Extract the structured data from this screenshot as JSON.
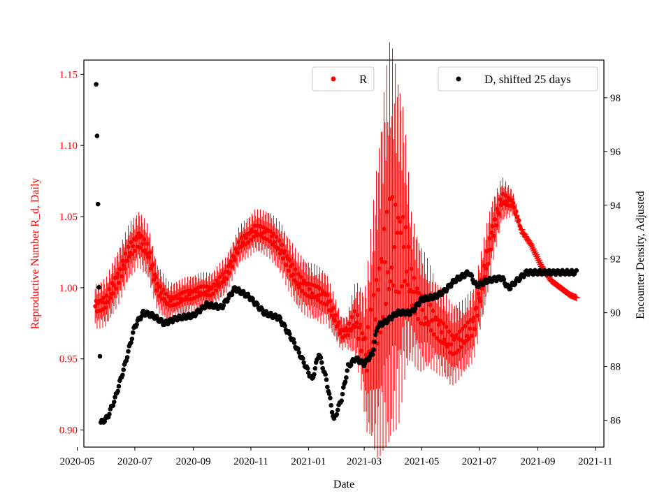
{
  "chart_data": {
    "type": "scatter",
    "xlabel": "Date",
    "ylabel_left": "Reproductive Number R_d, Daily",
    "ylabel_right": "Encounter Density, Adjusted",
    "xlim": [
      "2020-05-08",
      "2021-11-10"
    ],
    "ylim_left": [
      0.888,
      1.16
    ],
    "ylim_right": [
      85.0,
      99.4
    ],
    "x_ticks": [
      "2020-05",
      "2020-07",
      "2020-09",
      "2020-11",
      "2021-01",
      "2021-03",
      "2021-05",
      "2021-07",
      "2021-09",
      "2021-11"
    ],
    "y_left_ticks": [
      "0.90",
      "0.95",
      "1.00",
      "1.05",
      "1.10",
      "1.15"
    ],
    "y_right_ticks": [
      "86",
      "88",
      "90",
      "92",
      "94",
      "96",
      "98"
    ],
    "legend_r": {
      "label": "R",
      "placement": "top-center",
      "color": "#ff0000"
    },
    "legend_d": {
      "label": "D, shifted 25 days",
      "placement": "top-right",
      "color": "#000000"
    },
    "colors": {
      "r_series": "#ff0000",
      "d_series": "#000000",
      "axis": "#000000"
    },
    "series": [
      {
        "name": "R",
        "axis": "left",
        "marker": "dot_then_plus_after_2021-08-15",
        "knots": [
          [
            "2020-05-20",
            0.987
          ],
          [
            "2020-06-01",
            0.99
          ],
          [
            "2020-06-15",
            1.01
          ],
          [
            "2020-06-25",
            1.025
          ],
          [
            "2020-07-05",
            1.035
          ],
          [
            "2020-07-15",
            1.025
          ],
          [
            "2020-07-25",
            1.0
          ],
          [
            "2020-08-05",
            0.99
          ],
          [
            "2020-08-20",
            0.993
          ],
          [
            "2020-09-05",
            0.997
          ],
          [
            "2020-09-20",
            0.998
          ],
          [
            "2020-10-05",
            1.008
          ],
          [
            "2020-10-20",
            1.03
          ],
          [
            "2020-11-05",
            1.04
          ],
          [
            "2020-11-20",
            1.038
          ],
          [
            "2020-12-05",
            1.025
          ],
          [
            "2020-12-20",
            1.005
          ],
          [
            "2021-01-05",
            0.997
          ],
          [
            "2021-01-20",
            0.993
          ],
          [
            "2021-01-28",
            0.98
          ],
          [
            "2021-02-05",
            0.968
          ],
          [
            "2021-02-12",
            0.97
          ],
          [
            "2021-02-20",
            0.978
          ],
          [
            "2021-02-25",
            0.968
          ],
          [
            "2021-03-03",
            0.952
          ],
          [
            "2021-03-12",
            0.975
          ],
          [
            "2021-03-22",
            1.015
          ],
          [
            "2021-04-01",
            1.03
          ],
          [
            "2021-04-12",
            1.028
          ],
          [
            "2021-04-20",
            1.0
          ],
          [
            "2021-05-01",
            0.985
          ],
          [
            "2021-05-15",
            0.975
          ],
          [
            "2021-06-01",
            0.96
          ],
          [
            "2021-06-15",
            0.965
          ],
          [
            "2021-06-25",
            0.975
          ],
          [
            "2021-07-05",
            1.005
          ],
          [
            "2021-07-15",
            1.04
          ],
          [
            "2021-07-25",
            1.062
          ],
          [
            "2021-08-05",
            1.06
          ],
          [
            "2021-08-15",
            1.04
          ],
          [
            "2021-08-25",
            1.03
          ],
          [
            "2021-09-05",
            1.015
          ],
          [
            "2021-09-15",
            1.005
          ],
          [
            "2021-09-25",
            1.0
          ],
          [
            "2021-10-05",
            0.995
          ],
          [
            "2021-10-12",
            0.993
          ]
        ],
        "error_bars": [
          [
            "2020-05-20",
            0.012
          ],
          [
            "2020-06-15",
            0.015
          ],
          [
            "2020-07-10",
            0.015
          ],
          [
            "2020-08-10",
            0.01
          ],
          [
            "2020-09-15",
            0.01
          ],
          [
            "2020-10-15",
            0.01
          ],
          [
            "2020-11-15",
            0.012
          ],
          [
            "2020-12-15",
            0.015
          ],
          [
            "2021-01-15",
            0.015
          ],
          [
            "2021-02-10",
            0.008
          ],
          [
            "2021-02-28",
            0.03
          ],
          [
            "2021-03-15",
            0.08
          ],
          [
            "2021-03-28",
            0.11
          ],
          [
            "2021-04-08",
            0.09
          ],
          [
            "2021-04-20",
            0.04
          ],
          [
            "2021-05-15",
            0.025
          ],
          [
            "2021-06-15",
            0.02
          ],
          [
            "2021-07-10",
            0.02
          ],
          [
            "2021-07-25",
            0.012
          ],
          [
            "2021-08-10",
            0.005
          ],
          [
            "2021-08-20",
            0.0
          ],
          [
            "2021-10-12",
            0.0
          ]
        ]
      },
      {
        "name": "D, shifted 25 days",
        "axis": "right",
        "marker": "dot",
        "knots": [
          [
            "2020-05-21",
            98.5
          ],
          [
            "2020-05-22",
            96.5
          ],
          [
            "2020-05-23",
            94.0
          ],
          [
            "2020-05-24",
            91.0
          ],
          [
            "2020-05-26",
            85.9
          ],
          [
            "2020-06-02",
            86.1
          ],
          [
            "2020-06-10",
            86.8
          ],
          [
            "2020-06-20",
            88.0
          ],
          [
            "2020-07-01",
            89.5
          ],
          [
            "2020-07-10",
            90.0
          ],
          [
            "2020-07-20",
            89.9
          ],
          [
            "2020-08-01",
            89.6
          ],
          [
            "2020-08-15",
            89.8
          ],
          [
            "2020-09-01",
            89.9
          ],
          [
            "2020-09-15",
            90.3
          ],
          [
            "2020-10-01",
            90.2
          ],
          [
            "2020-10-15",
            90.9
          ],
          [
            "2020-10-30",
            90.6
          ],
          [
            "2020-11-15",
            90.0
          ],
          [
            "2020-12-01",
            89.8
          ],
          [
            "2020-12-15",
            89.0
          ],
          [
            "2020-12-25",
            88.3
          ],
          [
            "2021-01-05",
            87.5
          ],
          [
            "2021-01-12",
            88.5
          ],
          [
            "2021-01-20",
            87.5
          ],
          [
            "2021-01-28",
            86.0
          ],
          [
            "2021-02-05",
            86.8
          ],
          [
            "2021-02-12",
            88.0
          ],
          [
            "2021-02-20",
            88.3
          ],
          [
            "2021-03-01",
            88.1
          ],
          [
            "2021-03-10",
            88.5
          ],
          [
            "2021-03-15",
            89.5
          ],
          [
            "2021-03-25",
            89.7
          ],
          [
            "2021-04-05",
            90.0
          ],
          [
            "2021-04-20",
            90.0
          ],
          [
            "2021-05-01",
            90.5
          ],
          [
            "2021-05-15",
            90.6
          ],
          [
            "2021-05-25",
            90.8
          ],
          [
            "2021-06-05",
            91.2
          ],
          [
            "2021-06-20",
            91.5
          ],
          [
            "2021-06-28",
            91.0
          ],
          [
            "2021-07-10",
            91.2
          ],
          [
            "2021-07-25",
            91.3
          ],
          [
            "2021-08-01",
            90.9
          ],
          [
            "2021-08-10",
            91.2
          ],
          [
            "2021-08-20",
            91.5
          ],
          [
            "2021-10-12",
            91.5
          ]
        ]
      }
    ]
  }
}
